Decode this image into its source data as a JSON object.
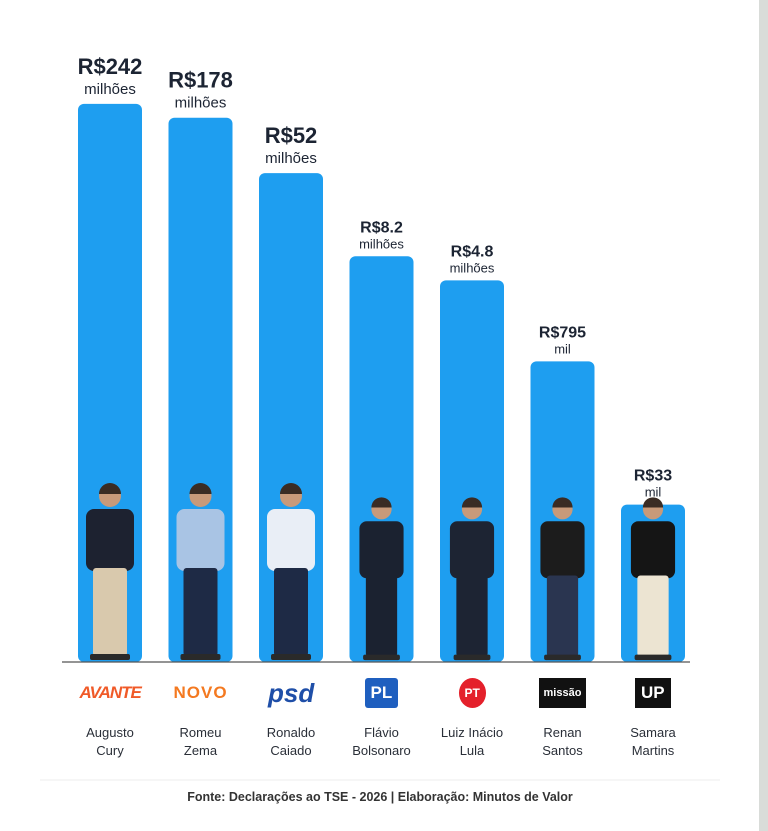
{
  "chart_data": {
    "type": "bar",
    "categories": [
      "Augusto Cury",
      "Romeu Zema",
      "Ronaldo Caiado",
      "Flávio Bolsonaro",
      "Luiz Inácio Lula",
      "Renan Santos",
      "Samara Martins"
    ],
    "parties": [
      "AVANTE",
      "NOVO",
      "psd",
      "PL",
      "PT",
      "missão",
      "UP"
    ],
    "values": [
      242000000,
      178000000,
      52000000,
      8200000,
      4800000,
      795000,
      33000
    ],
    "value_labels": [
      [
        "R$242",
        "milhões"
      ],
      [
        "R$178",
        "milhões"
      ],
      [
        "R$52",
        "milhões"
      ],
      [
        "R$8.2",
        "milhões"
      ],
      [
        "R$4.8",
        "milhões"
      ],
      [
        "R$795",
        "mil"
      ],
      [
        "R$33",
        "mil"
      ]
    ],
    "color": "#1e9ef0",
    "log_scale": true,
    "ylim": [
      1000,
      1000000000
    ],
    "source": "Fonte: Declarações ao TSE - 2026 | Elaboração: Minutos de Valor"
  }
}
